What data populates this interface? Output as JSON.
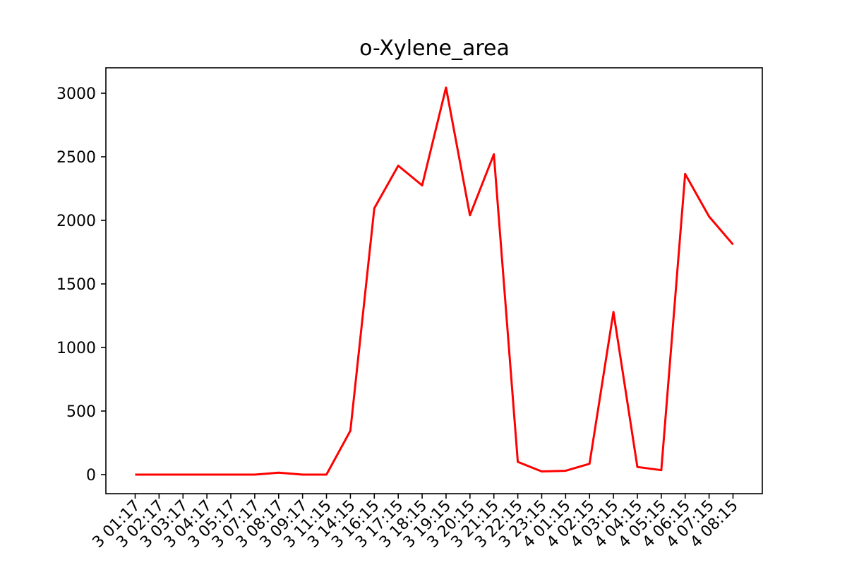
{
  "chart_data": {
    "type": "line",
    "title": "o-Xylene_area",
    "xlabel": "",
    "ylabel": "",
    "ylim": [
      -150,
      3200
    ],
    "yticks": [
      0,
      500,
      1000,
      1500,
      2000,
      2500,
      3000
    ],
    "grid": false,
    "line_color": "#ff0000",
    "x_tick_labels": [
      "3 01:17",
      "3 02:17",
      "3 03:17",
      "3 04:17",
      "3 05:17",
      "3 07:17",
      "3 08:17",
      "3 09:17",
      "3 11:15",
      "3 14:15",
      "3 16:15",
      "3 17:15",
      "3 18:15",
      "3 19:15",
      "3 20:15",
      "3 21:15",
      "3 22:15",
      "3 23:15",
      "4 01:15",
      "4 02:15",
      "4 03:15",
      "4 04:15",
      "4 05:15",
      "4 06:15",
      "4 07:15",
      "4 08:15"
    ],
    "series": [
      {
        "values": [
          0,
          0,
          0,
          0,
          0,
          0,
          15,
          0,
          0,
          345,
          2095,
          2430,
          2275,
          3045,
          2040,
          2520,
          100,
          25,
          30,
          85,
          1280,
          60,
          35,
          2365,
          2030,
          1810
        ]
      }
    ]
  }
}
